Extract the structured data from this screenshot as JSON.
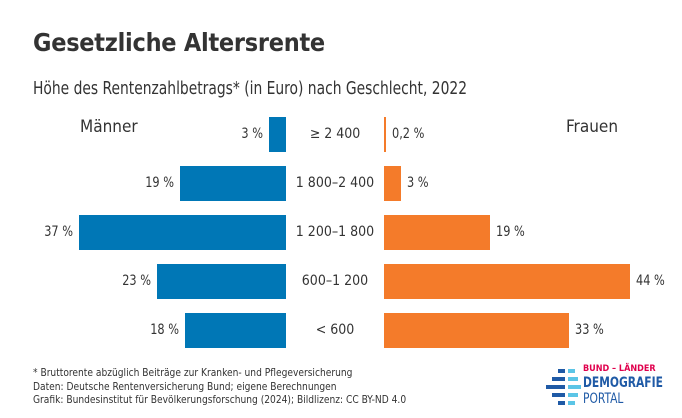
{
  "colors": {
    "men": "#0077b6",
    "women": "#f47b2a",
    "text": "#333333"
  },
  "chart_data": {
    "type": "bar",
    "orientation": "horizontal-butterfly",
    "title": "Gesetzliche Altersrente",
    "subtitle": "Höhe des Rentenzahlbetrags* (in Euro) nach Geschlecht, 2022",
    "categories": [
      "≥ 2 400",
      "1 800–2 400",
      "1 200–1 800",
      "600–1 200",
      "< 600"
    ],
    "series": [
      {
        "name": "Männer",
        "side": "left",
        "values": [
          3,
          19,
          37,
          23,
          18
        ],
        "labels": [
          "3 %",
          "19 %",
          "37 %",
          "23 %",
          "18 %"
        ]
      },
      {
        "name": "Frauen",
        "side": "right",
        "values": [
          0.2,
          3,
          19,
          44,
          33
        ],
        "labels": [
          "0,2 %",
          "3 %",
          "19 %",
          "44 %",
          "33 %"
        ]
      }
    ],
    "unit": "%",
    "xlabel": "",
    "ylabel": "",
    "grid": false
  },
  "footnotes": [
    "* Bruttorente abzüglich Beiträge zur Kranken- und Pflegeversicherung",
    "Daten: Deutsche Rentenversicherung Bund; eigene Berechnungen",
    "Grafik: Bundesinstitut für Bevölkerungsforschung (2024); Bildlizenz: CC BY-ND 4.0"
  ],
  "logo": {
    "line1": "BUND – LÄNDER",
    "line2": "DEMOGRAFIE",
    "line3": "PORTAL"
  }
}
